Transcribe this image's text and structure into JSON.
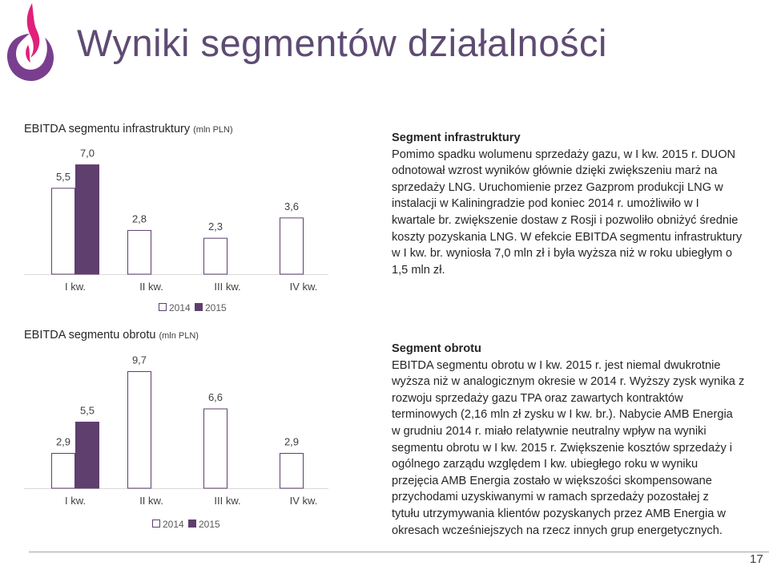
{
  "title": "Wyniki segmentów działalności",
  "colors": {
    "series_2014": "#ffffff",
    "series_2015": "#5e3f6e",
    "bar_border": "#5e3f6e",
    "title": "#5e4b73",
    "logo_purple": "#7a3e8e",
    "logo_pink": "#e0207a"
  },
  "icons": {
    "logo": "flame-logo-icon"
  },
  "charts": [
    {
      "title": "EBITDA segmentu infrastruktury",
      "unit": "(mln PLN)",
      "chart_data": {
        "type": "bar",
        "categories": [
          "I kw.",
          "II kw.",
          "III kw.",
          "IV kw."
        ],
        "series": [
          {
            "name": "2014",
            "values": [
              5.5,
              2.8,
              2.3,
              3.6
            ],
            "labels": [
              "5,5",
              "2,8",
              "2,3",
              "3,6"
            ]
          },
          {
            "name": "2015",
            "values": [
              7.0,
              null,
              null,
              null
            ],
            "labels": [
              "7,0",
              "",
              "",
              ""
            ]
          }
        ],
        "legend": "bottom-center",
        "ylim": [
          0,
          7.8
        ],
        "grid": false
      }
    },
    {
      "title": "EBITDA segmentu obrotu",
      "unit": "(mln PLN)",
      "chart_data": {
        "type": "bar",
        "categories": [
          "I kw.",
          "II kw.",
          "III kw.",
          "IV kw."
        ],
        "series": [
          {
            "name": "2014",
            "values": [
              2.9,
              9.7,
              6.6,
              2.9
            ],
            "labels": [
              "2,9",
              "9,7",
              "6,6",
              "2,9"
            ]
          },
          {
            "name": "2015",
            "values": [
              5.5,
              null,
              null,
              null
            ],
            "labels": [
              "5,5",
              "",
              "",
              ""
            ]
          }
        ],
        "legend": "bottom-center",
        "ylim": [
          0,
          11
        ],
        "grid": false
      }
    }
  ],
  "sections": [
    {
      "heading": "Segment infrastruktury",
      "lines": [
        "Pomimo spadku wolumenu sprzedaży gazu, w I kw. 2015 r. DUON",
        "odnotował wzrost wyników głównie dzięki zwiększeniu marż na",
        "sprzedaży LNG. Uruchomienie przez Gazprom produkcji LNG w",
        "instalacji w Kaliningradzie pod koniec 2014 r. umożliwiło w I",
        "kwartale br. zwiększenie dostaw z Rosji i pozwoliło obniżyć średnie",
        "koszty pozyskania LNG. W efekcie EBITDA segmentu infrastruktury",
        "w I kw. br. wyniosła 7,0 mln zł i była wyższa niż w roku ubiegłym o",
        "1,5 mln zł."
      ]
    },
    {
      "heading": "Segment obrotu",
      "lines": [
        "EBITDA segmentu obrotu w I kw. 2015 r. jest niemal dwukrotnie",
        "wyższa niż w analogicznym okresie w 2014 r. Wyższy zysk wynika z",
        "rozwoju sprzedaży gazu TPA oraz zawartych kontraktów",
        "terminowych (2,16 mln zł zysku w I kw. br.). Nabycie AMB Energia",
        "w grudniu 2014 r. miało relatywnie neutralny wpływ na wyniki",
        "segmentu obrotu w I kw. 2015 r. Zwiększenie kosztów sprzedaży i",
        "ogólnego zarządu względem I kw. ubiegłego roku w wyniku",
        "przejęcia AMB Energia  zostało w większości skompensowane",
        "przychodami uzyskiwanymi w ramach sprzedaży pozostałej z",
        "tytułu utrzymywania klientów pozyskanych przez AMB Energia w",
        "okresach wcześniejszych na rzecz innych grup energetycznych."
      ]
    }
  ],
  "page_number": "17"
}
